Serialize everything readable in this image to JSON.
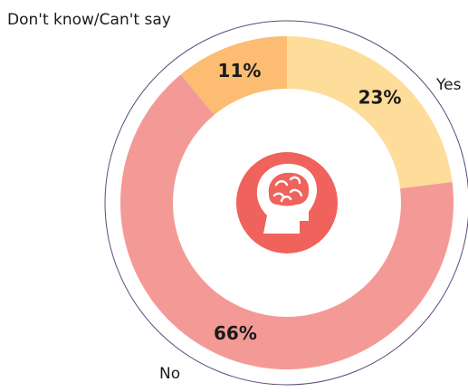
{
  "chart_data": {
    "type": "pie",
    "style": "donut",
    "categories": [
      "Yes",
      "No",
      "Don't know/Can't say"
    ],
    "values": [
      23,
      66,
      11
    ],
    "value_labels": [
      "23%",
      "66%",
      "11%"
    ],
    "colors": [
      "#fedd9b",
      "#f49a96",
      "#fcbc72"
    ],
    "ring_outline_color": "#5a4d7a",
    "center_icon": "brain-head-icon",
    "center_icon_color": "#f0625c",
    "title": ""
  }
}
